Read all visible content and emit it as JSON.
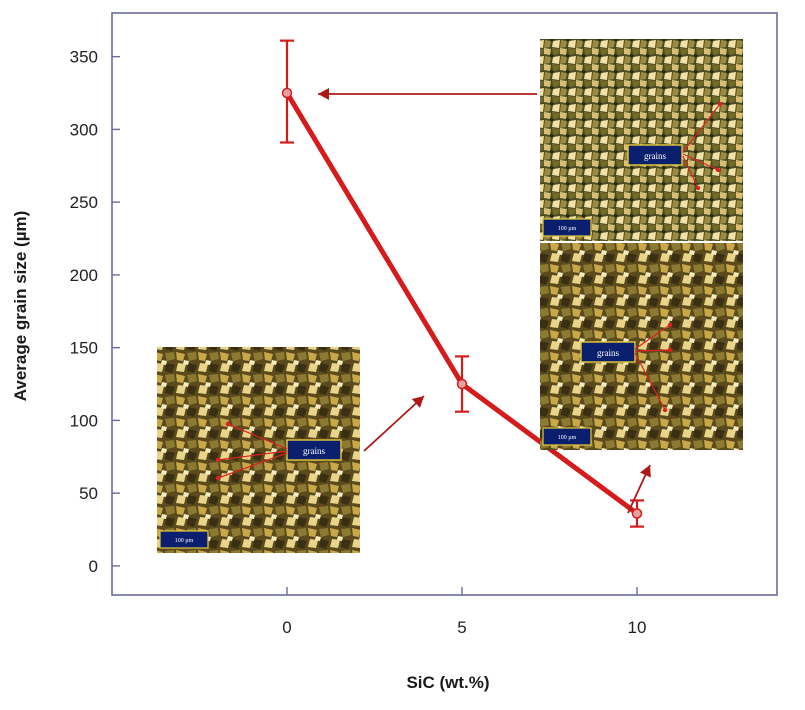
{
  "chart_data": {
    "type": "line",
    "title": "",
    "xlabel": "SiC (wt.%)",
    "ylabel": "Average grain size (µm)",
    "x": [
      0,
      5,
      10
    ],
    "x_ticks": [
      "0",
      "5",
      "10"
    ],
    "y_ticks": [
      "0",
      "50",
      "100",
      "150",
      "200",
      "250",
      "300",
      "350"
    ],
    "xlim": [
      -5,
      14
    ],
    "ylim": [
      -20,
      380
    ],
    "grid": false,
    "series": [
      {
        "values": [
          325,
          125,
          36
        ],
        "error_low": [
          291,
          106,
          27
        ],
        "error_high": [
          361,
          144,
          45
        ]
      }
    ]
  },
  "colors": {
    "series": "#d41c1c",
    "frame": "#6b6b9e",
    "label_box": "#0a1f6e",
    "label_border": "#e6c93a"
  },
  "insets": [
    {
      "name": "micrograph-0-wt",
      "label": "grains",
      "scale": "100 µm",
      "points_to_x": 0
    },
    {
      "name": "micrograph-5-wt",
      "label": "grains",
      "scale": "100 µm",
      "points_to_x": 5
    },
    {
      "name": "micrograph-10-wt",
      "label": "grains",
      "scale": "100 µm",
      "points_to_x": 10
    }
  ]
}
